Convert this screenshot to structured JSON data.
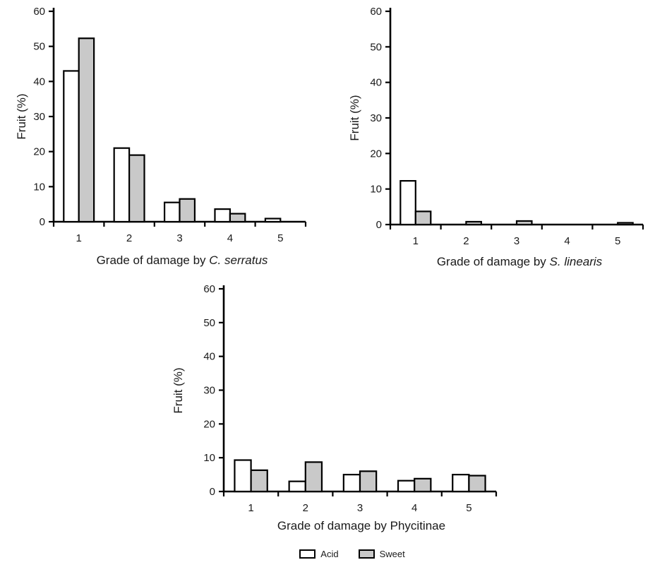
{
  "figure": {
    "background": "#ffffff",
    "text_color": "#1a1a1a",
    "axis_color": "#000000"
  },
  "colors": {
    "acid_fill": "#ffffff",
    "sweet_fill": "#c9c9c9",
    "bar_stroke": "#000000"
  },
  "legend": {
    "items": [
      {
        "label": "Acid",
        "fill": "#ffffff"
      },
      {
        "label": "Sweet",
        "fill": "#c9c9c9"
      }
    ]
  },
  "chart_data": [
    {
      "type": "bar",
      "title": "",
      "xlabel": "Grade of damage by C. serratus",
      "xlabel_prefix": "Grade of damage by ",
      "xlabel_emphasis": "C. serratus",
      "xlabel_emphasis_italic": true,
      "ylabel": "Fruit (%)",
      "categories": [
        "1",
        "2",
        "3",
        "4",
        "5"
      ],
      "series": [
        {
          "name": "Acid",
          "values": [
            43,
            21,
            5.5,
            3.6,
            0.9
          ]
        },
        {
          "name": "Sweet",
          "values": [
            52.3,
            19,
            6.5,
            2.3,
            0
          ]
        }
      ],
      "ylim": [
        0,
        60
      ],
      "yticks": [
        0,
        10,
        20,
        30,
        40,
        50,
        60
      ],
      "grid": false,
      "legend_position": "none"
    },
    {
      "type": "bar",
      "title": "",
      "xlabel": "Grade of damage by S. linearis",
      "xlabel_prefix": "Grade of damage by ",
      "xlabel_emphasis": "S. linearis",
      "xlabel_emphasis_italic": true,
      "ylabel": "Fruit (%)",
      "categories": [
        "1",
        "2",
        "3",
        "4",
        "5"
      ],
      "series": [
        {
          "name": "Acid",
          "values": [
            12.3,
            0,
            0,
            0,
            0
          ]
        },
        {
          "name": "Sweet",
          "values": [
            3.7,
            0.8,
            1.0,
            0,
            0.5
          ]
        }
      ],
      "ylim": [
        0,
        60
      ],
      "yticks": [
        0,
        10,
        20,
        30,
        40,
        50,
        60
      ],
      "grid": false,
      "legend_position": "none"
    },
    {
      "type": "bar",
      "title": "",
      "xlabel": "Grade of damage by Phycitinae",
      "xlabel_prefix": "Grade of damage by ",
      "xlabel_emphasis": "Phycitinae",
      "xlabel_emphasis_italic": false,
      "ylabel": "Fruit (%)",
      "categories": [
        "1",
        "2",
        "3",
        "4",
        "5"
      ],
      "series": [
        {
          "name": "Acid",
          "values": [
            9.3,
            3,
            5,
            3.2,
            5
          ]
        },
        {
          "name": "Sweet",
          "values": [
            6.3,
            8.7,
            6,
            3.8,
            4.7
          ]
        }
      ],
      "ylim": [
        0,
        60
      ],
      "yticks": [
        0,
        10,
        20,
        30,
        40,
        50,
        60
      ],
      "grid": false,
      "legend_position": "bottom-shared"
    }
  ]
}
